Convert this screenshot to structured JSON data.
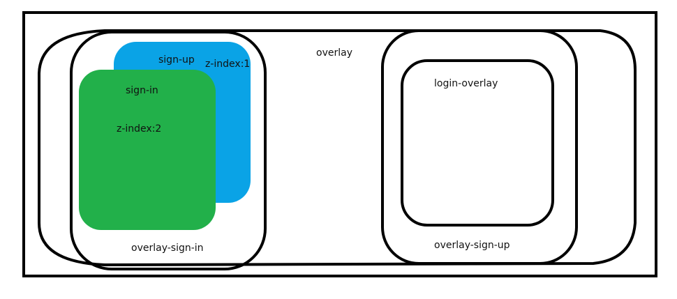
{
  "colors": {
    "background": "#ffffff",
    "stroke": "#000000",
    "sign_up_fill": "#0aa3e6",
    "sign_in_fill": "#22b04a"
  },
  "labels": {
    "overlay": "overlay",
    "sign_up": "sign-up",
    "sign_up_z": "z-index:1",
    "sign_in": "sign-in",
    "sign_in_z": "z-index:2",
    "overlay_sign_in": "overlay-sign-in",
    "login_overlay": "login-overlay",
    "overlay_sign_up": "overlay-sign-up"
  }
}
